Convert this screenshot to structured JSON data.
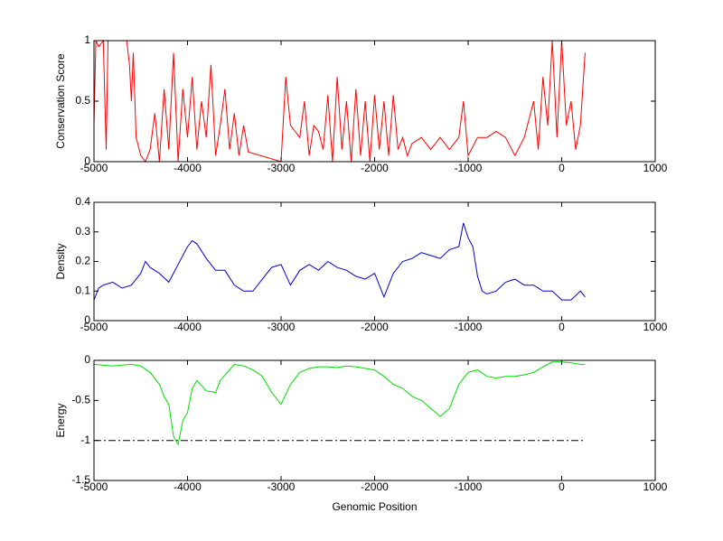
{
  "chart_data": [
    {
      "type": "line",
      "ylabel": "Conservation Score",
      "xlim": [
        -5000,
        1000
      ],
      "xticks": [
        -5000,
        -4000,
        -3000,
        -2000,
        -1000,
        0,
        1000
      ],
      "ylim": [
        0,
        1
      ],
      "yticks": [
        0,
        0.5,
        1
      ],
      "series": [
        {
          "color": "#ff0000",
          "x": [
            -5000,
            -4980,
            -4950,
            -4900,
            -4870,
            -4850,
            -4800,
            -4700,
            -4650,
            -4620,
            -4600,
            -4580,
            -4550,
            -4500,
            -4450,
            -4400,
            -4350,
            -4300,
            -4250,
            -4200,
            -4150,
            -4100,
            -4050,
            -4000,
            -3950,
            -3900,
            -3850,
            -3800,
            -3750,
            -3700,
            -3650,
            -3600,
            -3550,
            -3500,
            -3450,
            -3400,
            -3350,
            -3000,
            -2950,
            -2900,
            -2850,
            -2800,
            -2750,
            -2700,
            -2650,
            -2600,
            -2550,
            -2500,
            -2450,
            -2400,
            -2350,
            -2300,
            -2250,
            -2200,
            -2150,
            -2100,
            -2050,
            -2000,
            -1950,
            -1900,
            -1850,
            -1800,
            -1750,
            -1700,
            -1650,
            -1600,
            -1500,
            -1400,
            -1300,
            -1200,
            -1100,
            -1050,
            -1000,
            -900,
            -800,
            -700,
            -600,
            -500,
            -400,
            -300,
            -250,
            -200,
            -150,
            -100,
            -50,
            0,
            50,
            100,
            150,
            200,
            250
          ],
          "values": [
            0.3,
            1,
            0.95,
            1,
            0.1,
            1,
            1,
            1,
            1,
            0.8,
            0.5,
            0.9,
            0.2,
            0.05,
            0,
            0.1,
            0.4,
            0,
            0.6,
            0.1,
            0.9,
            0,
            0.6,
            0.2,
            0.7,
            0.1,
            0.5,
            0.2,
            0.8,
            0.05,
            0.3,
            0.6,
            0.1,
            0.4,
            0.05,
            0.3,
            0.08,
            0,
            0.7,
            0.3,
            0.25,
            0.2,
            0.5,
            0.05,
            0.3,
            0.25,
            0.1,
            0.55,
            0,
            0.7,
            0.1,
            0.5,
            0,
            0.6,
            0.05,
            0.5,
            0,
            0.55,
            0.1,
            0.5,
            0.05,
            0.55,
            0.1,
            0.2,
            0.05,
            0.15,
            0.2,
            0.1,
            0.2,
            0.1,
            0.2,
            0.5,
            0.05,
            0.2,
            0.2,
            0.25,
            0.2,
            0.05,
            0.2,
            0.5,
            0.1,
            0.7,
            0.3,
            1,
            0.2,
            1,
            0.3,
            0.5,
            0.1,
            0.3,
            0.9
          ]
        }
      ]
    },
    {
      "type": "line",
      "ylabel": "Density",
      "xlim": [
        -5000,
        1000
      ],
      "xticks": [
        -5000,
        -4000,
        -3000,
        -2000,
        -1000,
        0,
        1000
      ],
      "ylim": [
        0,
        0.4
      ],
      "yticks": [
        0,
        0.1,
        0.2,
        0.3,
        0.4
      ],
      "series": [
        {
          "color": "#0000cc",
          "x": [
            -5000,
            -4950,
            -4900,
            -4800,
            -4700,
            -4600,
            -4500,
            -4450,
            -4400,
            -4300,
            -4200,
            -4100,
            -4000,
            -3950,
            -3900,
            -3800,
            -3700,
            -3600,
            -3500,
            -3400,
            -3300,
            -3200,
            -3100,
            -3000,
            -2900,
            -2800,
            -2700,
            -2600,
            -2500,
            -2400,
            -2300,
            -2200,
            -2100,
            -2000,
            -1900,
            -1800,
            -1700,
            -1600,
            -1500,
            -1400,
            -1300,
            -1200,
            -1100,
            -1050,
            -1000,
            -950,
            -900,
            -850,
            -800,
            -700,
            -600,
            -500,
            -400,
            -300,
            -200,
            -100,
            0,
            100,
            200,
            250
          ],
          "values": [
            0.07,
            0.11,
            0.12,
            0.13,
            0.11,
            0.12,
            0.16,
            0.2,
            0.18,
            0.16,
            0.13,
            0.19,
            0.25,
            0.27,
            0.26,
            0.21,
            0.17,
            0.17,
            0.12,
            0.1,
            0.1,
            0.14,
            0.18,
            0.19,
            0.12,
            0.17,
            0.19,
            0.17,
            0.2,
            0.18,
            0.17,
            0.15,
            0.14,
            0.16,
            0.08,
            0.16,
            0.2,
            0.21,
            0.23,
            0.22,
            0.21,
            0.24,
            0.25,
            0.33,
            0.28,
            0.25,
            0.15,
            0.1,
            0.09,
            0.1,
            0.13,
            0.14,
            0.12,
            0.12,
            0.1,
            0.1,
            0.07,
            0.07,
            0.1,
            0.08
          ]
        }
      ]
    },
    {
      "type": "line",
      "ylabel": "Energy",
      "xlabel": "Genomic Position",
      "xlim": [
        -5000,
        1000
      ],
      "xticks": [
        -5000,
        -4000,
        -3000,
        -2000,
        -1000,
        0,
        1000
      ],
      "ylim": [
        -1.5,
        0
      ],
      "yticks": [
        -1.5,
        -1,
        -0.5,
        0
      ],
      "series": [
        {
          "color": "#00dd00",
          "x": [
            -5000,
            -4800,
            -4600,
            -4500,
            -4400,
            -4300,
            -4250,
            -4200,
            -4150,
            -4100,
            -4050,
            -4000,
            -3950,
            -3900,
            -3800,
            -3700,
            -3650,
            -3500,
            -3400,
            -3300,
            -3200,
            -3100,
            -3000,
            -2900,
            -2800,
            -2700,
            -2600,
            -2500,
            -2400,
            -2300,
            -2200,
            -2100,
            -2000,
            -1900,
            -1800,
            -1700,
            -1600,
            -1500,
            -1400,
            -1300,
            -1200,
            -1100,
            -1000,
            -900,
            -800,
            -700,
            -600,
            -500,
            -400,
            -300,
            -200,
            -100,
            0,
            100,
            200,
            250
          ],
          "values": [
            -0.05,
            -0.07,
            -0.05,
            -0.07,
            -0.15,
            -0.3,
            -0.45,
            -0.55,
            -0.95,
            -1.05,
            -0.75,
            -0.65,
            -0.35,
            -0.25,
            -0.38,
            -0.4,
            -0.25,
            -0.05,
            -0.07,
            -0.12,
            -0.2,
            -0.4,
            -0.55,
            -0.3,
            -0.15,
            -0.1,
            -0.08,
            -0.08,
            -0.09,
            -0.07,
            -0.08,
            -0.1,
            -0.12,
            -0.2,
            -0.3,
            -0.35,
            -0.45,
            -0.5,
            -0.6,
            -0.7,
            -0.6,
            -0.3,
            -0.15,
            -0.12,
            -0.2,
            -0.22,
            -0.2,
            -0.2,
            -0.18,
            -0.15,
            -0.08,
            -0.02,
            -0.02,
            -0.03,
            -0.05,
            -0.05
          ]
        },
        {
          "color": "#000000",
          "dash": "dashdot",
          "x": [
            -5000,
            250
          ],
          "values": [
            -1,
            -1
          ]
        }
      ]
    }
  ]
}
